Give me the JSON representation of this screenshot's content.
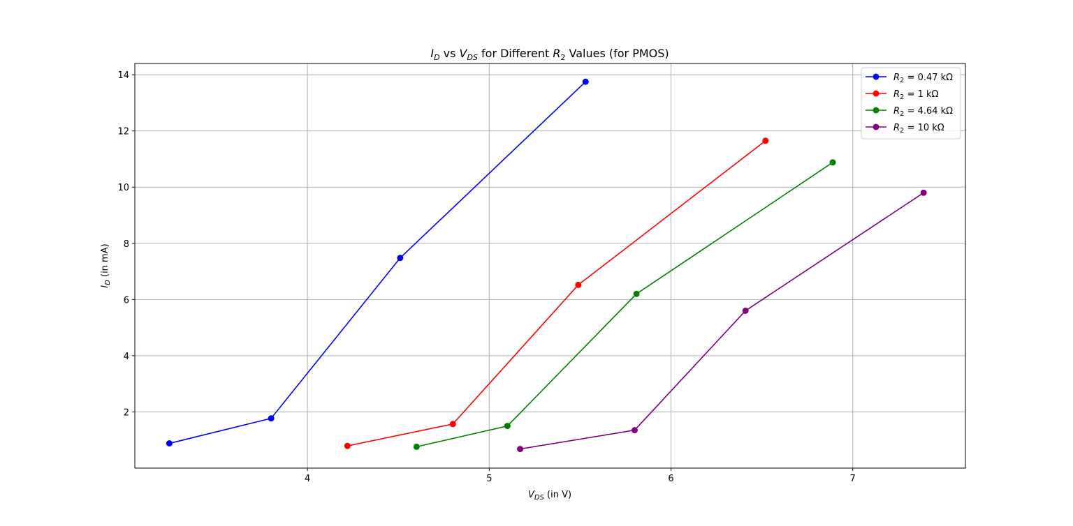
{
  "chart_data": {
    "type": "line",
    "title": {
      "id_main": "I",
      "id_sub": "D",
      "vs": " vs ",
      "vds_main": "V",
      "vds_sub": "DS",
      "middle": " for Different ",
      "r_main": "R",
      "r_sub": "2",
      "tail": " Values (for PMOS)"
    },
    "xlabel": {
      "main": "V",
      "sub": "DS",
      "rest": " (in V)"
    },
    "ylabel": {
      "main": "I",
      "sub": "D",
      "rest": " (in mA)"
    },
    "xlim": [
      3.05,
      7.62
    ],
    "ylim": [
      0.0,
      14.4
    ],
    "xticks": [
      4,
      5,
      6,
      7
    ],
    "xtick_labels": [
      "4",
      "5",
      "6",
      "7"
    ],
    "yticks": [
      2,
      4,
      6,
      8,
      10,
      12,
      14
    ],
    "ytick_labels": [
      "2",
      "4",
      "6",
      "8",
      "10",
      "12",
      "14"
    ],
    "grid": true,
    "legend_position": "top-right",
    "series": [
      {
        "name_main": "R",
        "name_sub": "2",
        "name_rest": " = 0.47 kΩ",
        "color": "#0000ff",
        "x": [
          3.24,
          3.8,
          4.51,
          5.53
        ],
        "y": [
          0.88,
          1.77,
          7.48,
          13.75
        ]
      },
      {
        "name_main": "R",
        "name_sub": "2",
        "name_rest": " = 1 kΩ",
        "color": "#ff0000",
        "x": [
          4.22,
          4.8,
          5.49,
          6.52
        ],
        "y": [
          0.79,
          1.57,
          6.52,
          11.65
        ]
      },
      {
        "name_main": "R",
        "name_sub": "2",
        "name_rest": " = 4.64 kΩ",
        "color": "#008000",
        "x": [
          4.6,
          5.1,
          5.81,
          6.89
        ],
        "y": [
          0.76,
          1.5,
          6.2,
          10.88
        ]
      },
      {
        "name_main": "R",
        "name_sub": "2",
        "name_rest": " = 10 kΩ",
        "color": "#800080",
        "x": [
          5.17,
          5.8,
          6.41,
          7.39
        ],
        "y": [
          0.68,
          1.35,
          5.6,
          9.8
        ]
      }
    ]
  }
}
